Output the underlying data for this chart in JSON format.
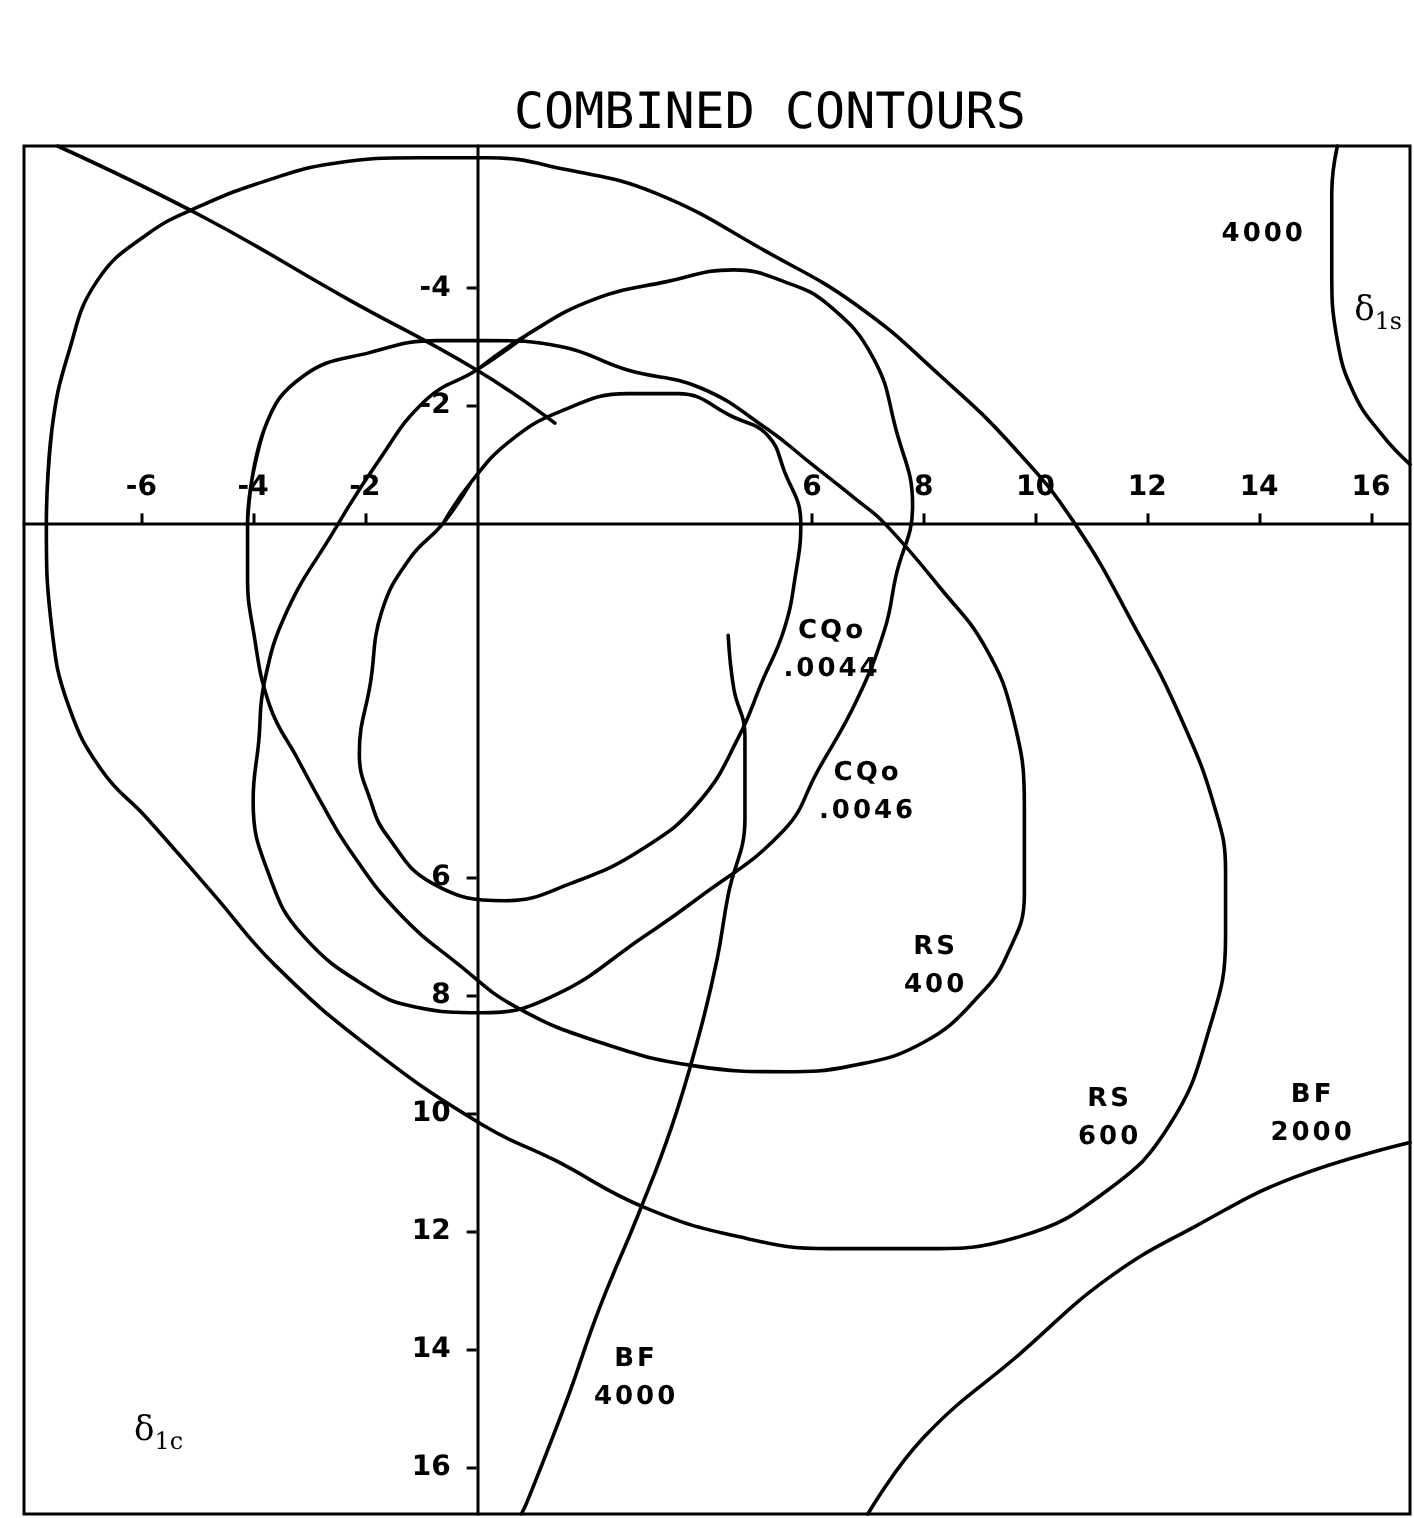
{
  "chart_data": {
    "type": "line",
    "title": "COMBINED CONTOURS",
    "xlabel": "δ$_{1s}$",
    "ylabel": "δ$_{1c}$",
    "xlim": [
      -8.1,
      16.7
    ],
    "ylim": [
      16.8,
      -6.4
    ],
    "xticks": [
      -6,
      -4,
      -2,
      6,
      8,
      10,
      12,
      14,
      16
    ],
    "yticks": [
      -4,
      -2,
      6,
      8,
      10,
      12,
      14,
      16
    ],
    "marker": "none",
    "series": [
      {
        "name": "RS\n600",
        "color": "#000000",
        "x": [
          -7.7,
          -7.6,
          -7.3,
          -6.8,
          -5.9,
          -4.9,
          -3.8,
          -2.6,
          -1.0,
          0.2,
          1.6,
          3.2,
          5.2,
          6.8,
          8.3,
          9.6,
          10.7,
          11.8,
          12.6,
          13.2,
          13.4,
          13.4,
          13.1,
          12.4,
          11.3,
          9.7,
          8.0,
          6.3,
          4.7,
          3.0,
          1.4,
          0.1,
          -1.9,
          -3.6,
          -4.7,
          -5.9,
          -6.7,
          -7.3,
          -7.6,
          -7.7,
          -7.6
        ],
        "values": [
          0.0,
          -1.6,
          -2.9,
          -4.1,
          -4.9,
          -5.4,
          -5.8,
          -6.1,
          -6.2,
          -6.2,
          -6.0,
          -5.6,
          -4.6,
          -3.7,
          -2.5,
          -1.3,
          0.0,
          1.8,
          3.3,
          4.8,
          5.9,
          7.0,
          8.6,
          10.2,
          11.3,
          12.1,
          12.3,
          12.3,
          12.1,
          11.6,
          10.8,
          10.2,
          8.9,
          7.5,
          6.3,
          5.0,
          4.2,
          3.1,
          1.8,
          0.0,
          -1.6
        ]
      },
      {
        "name": "RS\n400",
        "color": "#000000",
        "x": [
          -4.1,
          -3.8,
          -3.1,
          -1.9,
          -0.7,
          0.2,
          1.5,
          2.7,
          4.0,
          5.2,
          6.0,
          6.8,
          7.3,
          8.3,
          9.1,
          9.6,
          9.8,
          9.8,
          9.5,
          9.0,
          8.0,
          6.7,
          5.5,
          3.9,
          2.2,
          0.7,
          -0.3,
          -1.4,
          -2.3,
          -2.8,
          -3.2,
          -3.7,
          -4.0,
          -4.1,
          -4.1,
          -3.8
        ],
        "values": [
          0.0,
          -1.6,
          -2.5,
          -2.9,
          -3.1,
          -3.1,
          -3.0,
          -2.6,
          -2.3,
          -1.6,
          -1.0,
          -0.4,
          0.0,
          1.1,
          2.1,
          3.3,
          4.8,
          6.3,
          7.3,
          8.0,
          8.8,
          9.2,
          9.3,
          9.2,
          8.8,
          8.2,
          7.5,
          6.6,
          5.5,
          4.7,
          4.0,
          3.1,
          1.8,
          0.9,
          0.0,
          -1.6
        ]
      },
      {
        "name": "CQo\n.0046",
        "color": "#000000",
        "x": [
          0.0,
          0.9,
          2.1,
          3.4,
          4.6,
          5.5,
          6.3,
          7.1,
          7.5,
          7.8,
          7.5,
          7.3,
          6.8,
          6.1,
          5.5,
          3.9,
          3.0,
          1.4,
          0.1,
          -1.1,
          -1.9,
          -3.1,
          -3.7,
          -4.0,
          -3.9,
          -3.8,
          -3.4,
          -2.6,
          -1.8,
          -0.9,
          0.0,
          0.9
        ],
        "values": [
          -2.6,
          -3.2,
          -3.8,
          -4.1,
          -4.3,
          -4.1,
          -3.7,
          -2.8,
          -1.6,
          -0.3,
          0.9,
          1.8,
          3.0,
          4.2,
          5.2,
          6.4,
          7.0,
          8.0,
          8.3,
          8.2,
          7.9,
          7.0,
          6.0,
          4.7,
          3.7,
          2.7,
          1.5,
          0.2,
          -1.0,
          -2.1,
          -2.6,
          -3.2
        ]
      },
      {
        "name": "CQo\n.0044",
        "color": "#000000",
        "x": [
          -0.6,
          -0.1,
          0.6,
          1.5,
          2.7,
          3.6,
          4.6,
          5.2,
          5.5,
          5.8,
          5.7,
          5.5,
          5.1,
          4.7,
          4.0,
          3.0,
          1.7,
          0.5,
          -0.8,
          -1.6,
          -1.9,
          -2.1,
          -1.9,
          -1.7,
          -1.2,
          -0.6,
          -0.1
        ],
        "values": [
          0.0,
          -0.7,
          -1.4,
          -1.9,
          -2.2,
          -2.2,
          -1.8,
          -1.5,
          -0.9,
          0.0,
          0.9,
          1.8,
          2.7,
          3.6,
          4.7,
          5.5,
          6.1,
          6.4,
          6.1,
          5.3,
          4.7,
          3.9,
          2.7,
          1.5,
          0.6,
          0.0,
          -0.7
        ]
      },
      {
        "name": "BF\n4000",
        "color": "#000000",
        "x": [
          4.5,
          4.6,
          4.8,
          4.8,
          4.5,
          4.3,
          4.0,
          3.5,
          2.9,
          2.2,
          1.6,
          0.9,
          0.8
        ],
        "values": [
          1.9,
          2.8,
          3.6,
          5.0,
          6.3,
          7.4,
          8.6,
          10.2,
          11.7,
          13.3,
          14.9,
          16.6,
          16.8
        ]
      },
      {
        "color": "#000000",
        "x": [
          -7.5,
          -4.9,
          -2.3,
          0.0,
          1.4
        ],
        "values": [
          -6.4,
          -5.2,
          -3.8,
          -2.6,
          -1.7
        ]
      },
      {
        "name": "4000",
        "color": "#000000",
        "x": [
          15.4,
          15.3,
          15.3,
          15.4,
          15.7,
          16.2,
          16.7
        ],
        "values": [
          -6.4,
          -5.6,
          -4.3,
          -3.1,
          -2.2,
          -1.5,
          -1.0
        ]
      },
      {
        "name": "BF\n2000",
        "color": "#000000",
        "x": [
          7.0,
          8.0,
          9.7,
          11.3,
          12.9,
          14.6,
          16.7
        ],
        "values": [
          16.8,
          15.5,
          14.1,
          12.8,
          11.9,
          11.1,
          10.5
        ]
      }
    ]
  }
}
